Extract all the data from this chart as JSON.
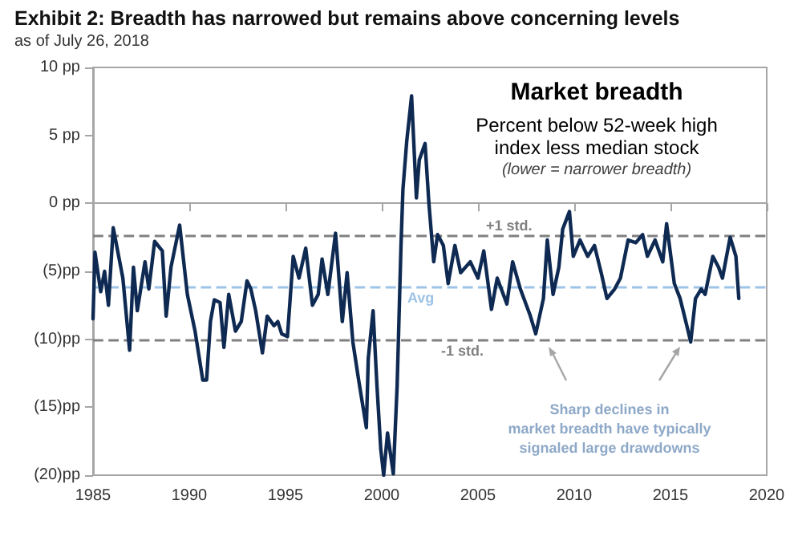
{
  "chart_data": {
    "type": "line",
    "title": "Exhibit 2: Breadth has narrowed but remains above concerning levels",
    "subtitle": "as of July 26, 2018",
    "annotations": [
      "Market breadth",
      "Percent below 52-week high",
      "index less median stock",
      "(lower = narrower breadth)",
      "Sharp declines in market breadth have typically signaled large drawdowns"
    ],
    "xlim": [
      1985,
      2020
    ],
    "xticks": [
      1985,
      1990,
      1995,
      2000,
      2005,
      2010,
      2015,
      2020
    ],
    "ylim": [
      -20,
      10
    ],
    "yticks": [
      {
        "value": 10,
        "label": "10 pp"
      },
      {
        "value": 5,
        "label": "5 pp"
      },
      {
        "value": 0,
        "label": "0 pp"
      },
      {
        "value": -5,
        "label": "(5)pp"
      },
      {
        "value": -10,
        "label": "(10)pp"
      },
      {
        "value": -15,
        "label": "(15)pp"
      },
      {
        "value": -20,
        "label": "(20)pp"
      }
    ],
    "grid": false,
    "marker": "none",
    "line_style": "solid",
    "ref_lines": [
      {
        "axis": "y",
        "value": 0,
        "label": null,
        "color": "#a6a6a6",
        "line_style": "solid"
      },
      {
        "axis": "y",
        "value": -2.4,
        "label": "+1 std.",
        "color": "#808080",
        "line_style": "dashed"
      },
      {
        "axis": "y",
        "value": -6.2,
        "label": "Avg",
        "color": "#9dc3e6",
        "line_style": "dashed"
      },
      {
        "axis": "y",
        "value": -10.1,
        "label": "-1 std.",
        "color": "#808080",
        "line_style": "dashed"
      }
    ],
    "series": [
      {
        "color": "#0f2a52",
        "x": [
          1985.0,
          1985.1,
          1985.4,
          1985.6,
          1985.8,
          1986.05,
          1986.55,
          1986.9,
          1987.1,
          1987.3,
          1987.7,
          1987.9,
          1988.2,
          1988.6,
          1988.8,
          1989.05,
          1989.5,
          1989.9,
          1990.3,
          1990.7,
          1990.9,
          1991.1,
          1991.3,
          1991.6,
          1991.8,
          1992.05,
          1992.4,
          1992.7,
          1993.0,
          1993.2,
          1993.45,
          1993.8,
          1994.05,
          1994.4,
          1994.6,
          1994.8,
          1995.1,
          1995.4,
          1995.7,
          1996.05,
          1996.4,
          1996.7,
          1996.9,
          1997.2,
          1997.6,
          1997.95,
          1998.2,
          1998.5,
          1998.8,
          1999.2,
          1999.3,
          1999.55,
          1999.75,
          1999.95,
          2000.1,
          2000.3,
          2000.6,
          2000.8,
          2001.0,
          2001.1,
          2001.3,
          2001.55,
          2001.8,
          2001.95,
          2002.25,
          2002.45,
          2002.7,
          2002.9,
          2003.2,
          2003.45,
          2003.8,
          2004.1,
          2004.6,
          2005.0,
          2005.3,
          2005.7,
          2006.0,
          2006.5,
          2006.8,
          2007.2,
          2007.7,
          2008.0,
          2008.4,
          2008.6,
          2008.9,
          2009.2,
          2009.4,
          2009.75,
          2009.95,
          2010.3,
          2010.7,
          2011.05,
          2011.4,
          2011.7,
          2012.1,
          2012.4,
          2012.8,
          2013.2,
          2013.55,
          2013.8,
          2014.2,
          2014.6,
          2014.8,
          2015.2,
          2015.5,
          2015.85,
          2016.05,
          2016.3,
          2016.6,
          2016.8,
          2017.2,
          2017.5,
          2017.7,
          2018.1,
          2018.4,
          2018.55
        ],
        "values": [
          -8.5,
          -3.6,
          -6.5,
          -5,
          -7.5,
          -1.8,
          -5.5,
          -10.8,
          -4.7,
          -7.9,
          -4.3,
          -6.3,
          -2.8,
          -3.5,
          -8.3,
          -4.7,
          -1.6,
          -6.7,
          -9.4,
          -13,
          -13,
          -8.7,
          -7.1,
          -7.3,
          -10.6,
          -6.7,
          -9.4,
          -8.7,
          -5.7,
          -6.3,
          -7.9,
          -11,
          -8.3,
          -9,
          -8.7,
          -9.6,
          -9.8,
          -3.9,
          -5.5,
          -3.3,
          -7.5,
          -6.7,
          -4.1,
          -6.7,
          -2.2,
          -8.7,
          -5.1,
          -10.2,
          -13,
          -16.5,
          -11.4,
          -7.9,
          -13.4,
          -18.1,
          -20,
          -16.9,
          -19.9,
          -13.4,
          -3.1,
          1,
          4.6,
          7.9,
          0.4,
          3.2,
          4.4,
          0,
          -4.3,
          -2.3,
          -3.1,
          -5.9,
          -3.1,
          -5.1,
          -4.3,
          -5.5,
          -3.5,
          -7.8,
          -5.5,
          -7.4,
          -4.3,
          -6.3,
          -8.2,
          -9.6,
          -7,
          -2.7,
          -6.7,
          -4.7,
          -1.9,
          -0.6,
          -3.9,
          -2.7,
          -3.9,
          -3.1,
          -5.1,
          -7,
          -6.3,
          -5.5,
          -2.7,
          -2.9,
          -2.3,
          -3.9,
          -2.7,
          -4.3,
          -1.5,
          -5.9,
          -7,
          -9,
          -10.2,
          -7,
          -6.3,
          -6.7,
          -3.9,
          -4.7,
          -5.5,
          -2.5,
          -3.9,
          -7
        ]
      }
    ]
  }
}
